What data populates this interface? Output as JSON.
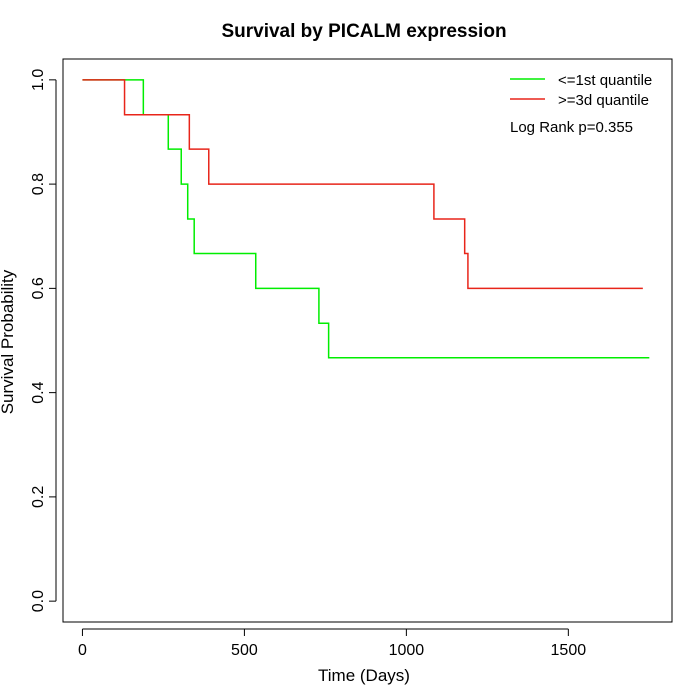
{
  "chart_data": {
    "type": "line",
    "title": "Survival by PICALM expression",
    "xlabel": "Time (Days)",
    "ylabel": "Survival Probability",
    "xlim": [
      -60,
      1820
    ],
    "ylim": [
      -0.04,
      1.04
    ],
    "xticks": [
      0,
      500,
      1000,
      1500
    ],
    "yticks": [
      0.0,
      0.2,
      0.4,
      0.6,
      0.8,
      1.0
    ],
    "xtick_labels": [
      "0",
      "500",
      "1000",
      "1500"
    ],
    "ytick_labels": [
      "0.0",
      "0.2",
      "0.4",
      "0.6",
      "0.8",
      "1.0"
    ],
    "grid": false,
    "legend_position": "top-right",
    "annotation": "Log Rank p=0.355",
    "series": [
      {
        "name": "<=1st quantile",
        "color": "#00ee00",
        "step": true,
        "x": [
          0,
          188,
          265,
          305,
          325,
          345,
          535,
          730,
          760,
          1750
        ],
        "y": [
          1.0,
          0.933,
          0.867,
          0.8,
          0.733,
          0.667,
          0.6,
          0.533,
          0.467,
          0.467
        ]
      },
      {
        "name": ">=3d quantile",
        "color": "#e8251a",
        "step": true,
        "x": [
          0,
          130,
          330,
          390,
          1085,
          1180,
          1190,
          1730
        ],
        "y": [
          1.0,
          0.933,
          0.867,
          0.8,
          0.733,
          0.667,
          0.6,
          0.6
        ]
      }
    ]
  }
}
